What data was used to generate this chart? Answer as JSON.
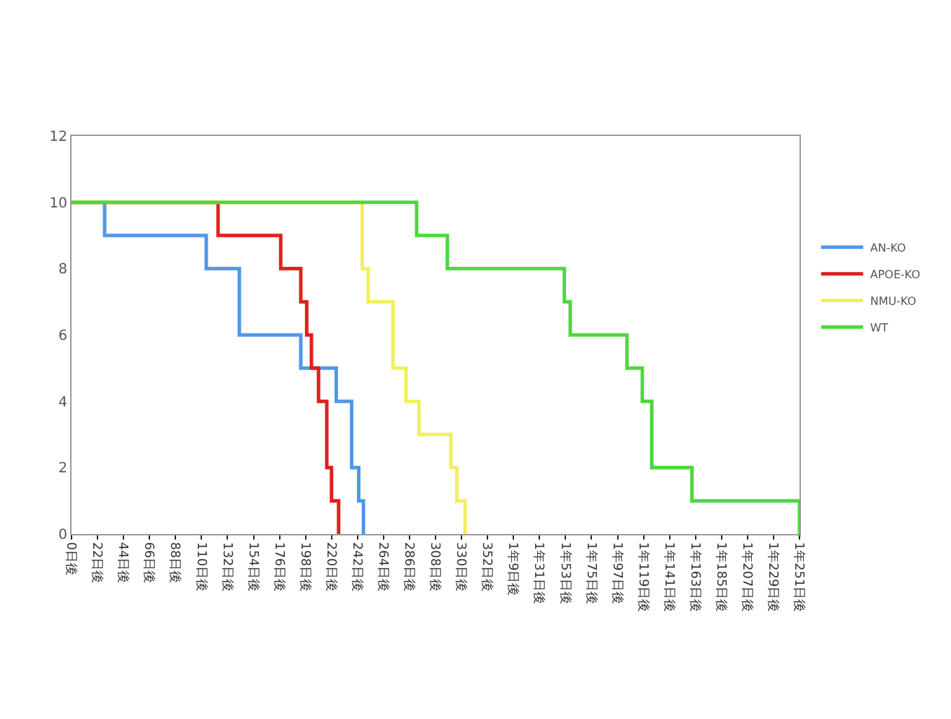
{
  "chart_data": {
    "type": "step",
    "xlim": [
      0,
      616
    ],
    "xticks": [
      {
        "value": 0,
        "label": "0日後"
      },
      {
        "value": 22,
        "label": "22日後"
      },
      {
        "value": 44,
        "label": "44日後"
      },
      {
        "value": 66,
        "label": "66日後"
      },
      {
        "value": 88,
        "label": "88日後"
      },
      {
        "value": 110,
        "label": "110日後"
      },
      {
        "value": 132,
        "label": "132日後"
      },
      {
        "value": 154,
        "label": "154日後"
      },
      {
        "value": 176,
        "label": "176日後"
      },
      {
        "value": 198,
        "label": "198日後"
      },
      {
        "value": 220,
        "label": "220日後"
      },
      {
        "value": 242,
        "label": "242日後"
      },
      {
        "value": 264,
        "label": "264日後"
      },
      {
        "value": 286,
        "label": "286日後"
      },
      {
        "value": 308,
        "label": "308日後"
      },
      {
        "value": 330,
        "label": "330日後"
      },
      {
        "value": 352,
        "label": "352日後"
      },
      {
        "value": 374,
        "label": "1年9日後"
      },
      {
        "value": 396,
        "label": "1年31日後"
      },
      {
        "value": 418,
        "label": "1年53日後"
      },
      {
        "value": 440,
        "label": "1年75日後"
      },
      {
        "value": 462,
        "label": "1年97日後"
      },
      {
        "value": 484,
        "label": "1年119日後"
      },
      {
        "value": 506,
        "label": "1年141日後"
      },
      {
        "value": 528,
        "label": "1年163日後"
      },
      {
        "value": 550,
        "label": "1年185日後"
      },
      {
        "value": 572,
        "label": "1年207日後"
      },
      {
        "value": 594,
        "label": "1年229日後"
      },
      {
        "value": 616,
        "label": "1年251日後"
      }
    ],
    "ylim": [
      0,
      12
    ],
    "yticks": [
      0,
      2,
      4,
      6,
      8,
      10,
      12
    ],
    "grid": false,
    "legend": "right",
    "marker": "none",
    "line_style": "solid",
    "series": [
      {
        "name": "AN-KO",
        "color": "#4f97e8",
        "x": [
          0,
          28,
          114,
          142,
          194,
          224,
          237,
          243,
          247
        ],
        "values": [
          10,
          9,
          8,
          6,
          5,
          4,
          2,
          1,
          0
        ]
      },
      {
        "name": "APOE-KO",
        "color": "#e0201b",
        "x": [
          0,
          124,
          177,
          194,
          199,
          203,
          209,
          216,
          220,
          226
        ],
        "values": [
          10,
          9,
          8,
          7,
          6,
          5,
          4,
          2,
          1,
          0
        ]
      },
      {
        "name": "NMU-KO",
        "color": "#f3ef5c",
        "x": [
          0,
          246,
          251,
          272,
          283,
          294,
          321,
          326,
          333
        ],
        "values": [
          10,
          8,
          7,
          5,
          4,
          3,
          2,
          1,
          0
        ]
      },
      {
        "name": "WT",
        "color": "#4cd83c",
        "x": [
          0,
          292,
          318,
          417,
          422,
          470,
          483,
          491,
          525,
          616
        ],
        "values": [
          10,
          9,
          8,
          7,
          6,
          5,
          4,
          2,
          1,
          0
        ]
      }
    ]
  }
}
